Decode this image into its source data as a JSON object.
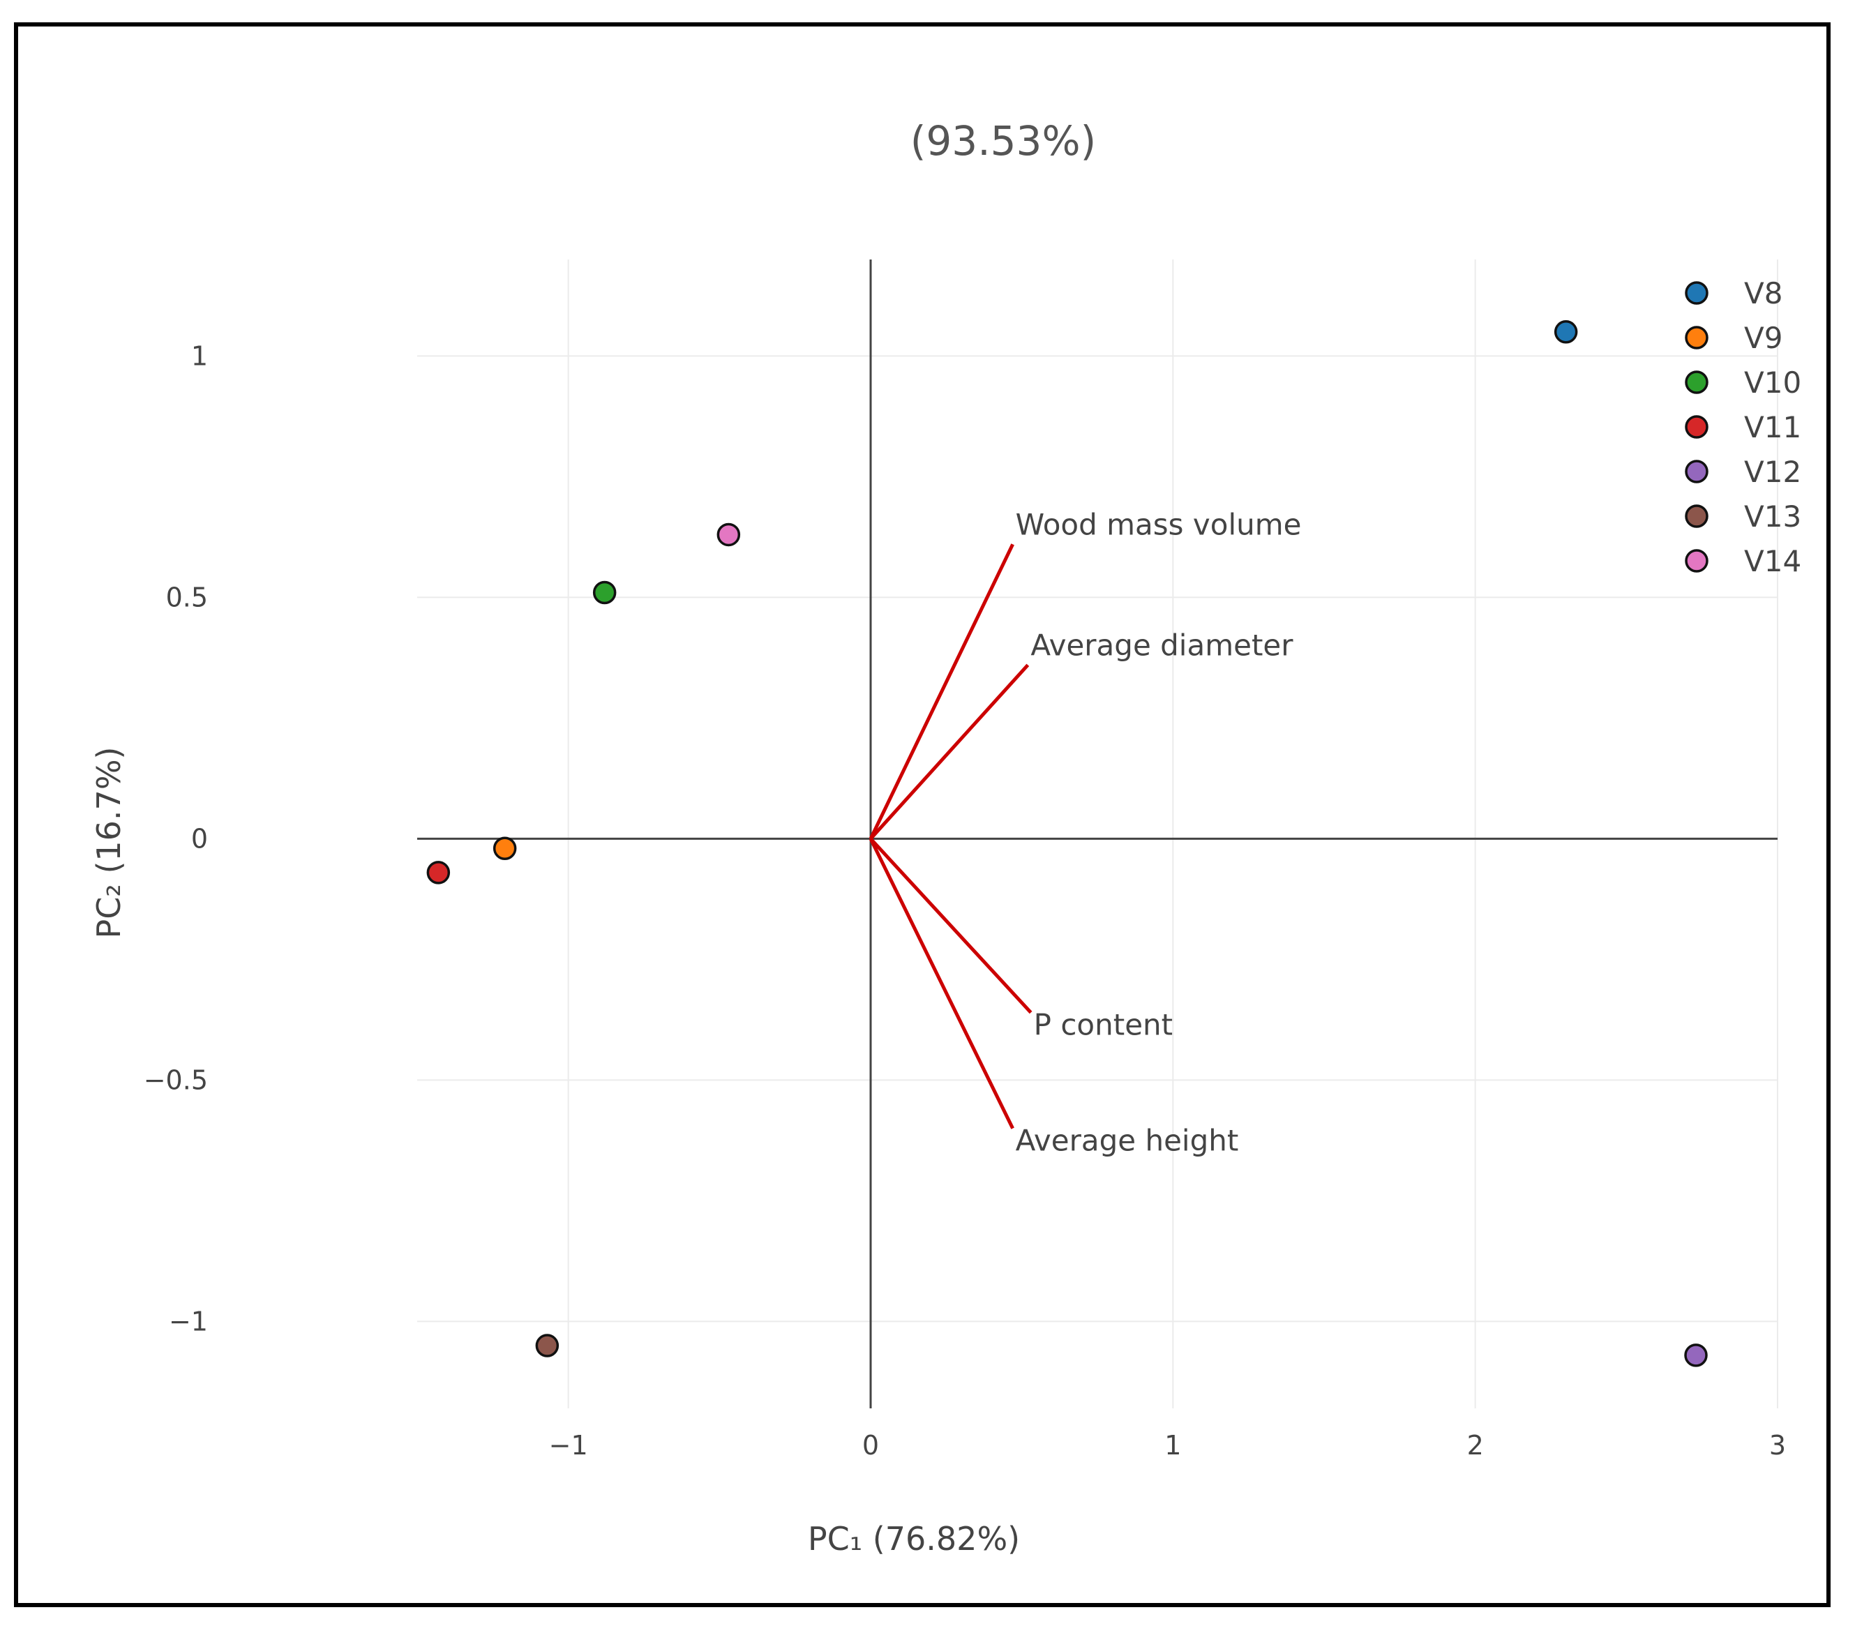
{
  "chart_data": {
    "type": "scatter",
    "subtype": "pca-biplot",
    "title": "(93.53%)",
    "xlabel": "PC₁ (76.82%)",
    "ylabel": "PC₂ (16.7%)",
    "xlim": [
      -1.5,
      3.0
    ],
    "ylim": [
      -1.18,
      1.2
    ],
    "xticks": [
      -1,
      0,
      1,
      2,
      3
    ],
    "xtick_labels": [
      "−1",
      "0",
      "1",
      "2",
      "3"
    ],
    "yticks": [
      -1,
      -0.5,
      0,
      0.5,
      1
    ],
    "ytick_labels": [
      "−1",
      "−0.5",
      "0",
      "0.5",
      "1"
    ],
    "grid": true,
    "legend_position": "top-right",
    "points": [
      {
        "name": "V8",
        "x": 2.3,
        "y": 1.05,
        "color": "#1f77b4"
      },
      {
        "name": "V9",
        "x": -1.21,
        "y": -0.02,
        "color": "#ff7f0e"
      },
      {
        "name": "V10",
        "x": -0.88,
        "y": 0.51,
        "color": "#2ca02c"
      },
      {
        "name": "V11",
        "x": -1.43,
        "y": -0.07,
        "color": "#d62728"
      },
      {
        "name": "V12",
        "x": 2.73,
        "y": -1.07,
        "color": "#9467bd"
      },
      {
        "name": "V13",
        "x": -1.07,
        "y": -1.05,
        "color": "#8c564b"
      },
      {
        "name": "V14",
        "x": -0.47,
        "y": 0.63,
        "color": "#e377c2"
      }
    ],
    "loadings": [
      {
        "name": "Wood mass volume",
        "x": 0.47,
        "y": 0.61
      },
      {
        "name": "Average diameter",
        "x": 0.52,
        "y": 0.36
      },
      {
        "name": "P content",
        "x": 0.53,
        "y": -0.36
      },
      {
        "name": "Average height",
        "x": 0.47,
        "y": -0.6
      }
    ],
    "loading_color": "#cc0000"
  }
}
